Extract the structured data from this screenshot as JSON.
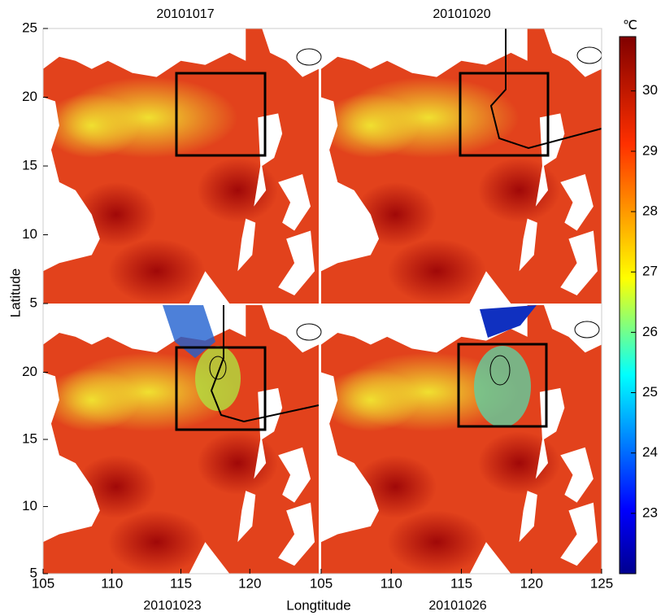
{
  "panels": [
    {
      "title": "20101017"
    },
    {
      "title": "20101020"
    },
    {
      "title": "20101023"
    },
    {
      "title": "20101026"
    }
  ],
  "lon_range": [
    105,
    125
  ],
  "lon_ticks_left": [
    105,
    110,
    115,
    120
  ],
  "lon_ticks_right": [
    105,
    110,
    115,
    120,
    125
  ],
  "lat_range": [
    5,
    25
  ],
  "lat_ticks_top": [
    5,
    10,
    15,
    20,
    25
  ],
  "lat_ticks_bottom": [
    5,
    10,
    15,
    20
  ],
  "x_label": "Longtitude",
  "y_label": "Latitude",
  "colorbar": {
    "unit": "℃",
    "range": [
      22.0,
      30.9
    ],
    "ticks": [
      23,
      24,
      25,
      26,
      27,
      28,
      29,
      30
    ]
  }
}
